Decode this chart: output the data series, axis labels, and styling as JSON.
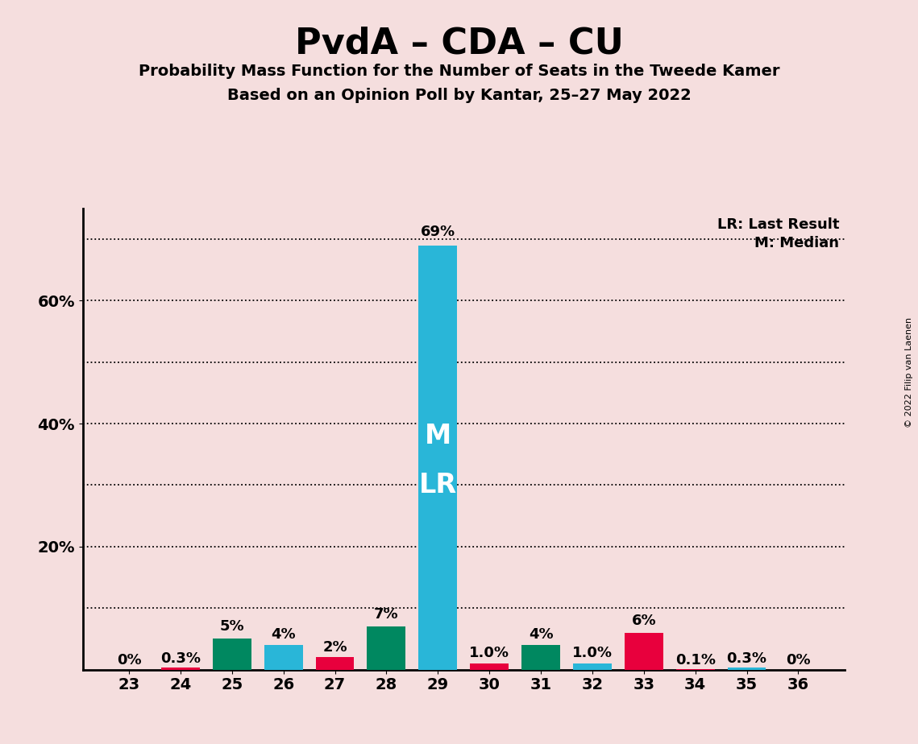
{
  "title": "PvdA – CDA – CU",
  "subtitle1": "Probability Mass Function for the Number of Seats in the Tweede Kamer",
  "subtitle2": "Based on an Opinion Poll by Kantar, 25–27 May 2022",
  "copyright": "© 2022 Filip van Laenen",
  "seats": [
    23,
    24,
    25,
    26,
    27,
    28,
    29,
    30,
    31,
    32,
    33,
    34,
    35,
    36
  ],
  "values": [
    0.0,
    0.3,
    5.0,
    4.0,
    2.0,
    7.0,
    69.0,
    1.0,
    4.0,
    1.0,
    6.0,
    0.1,
    0.3,
    0.0
  ],
  "bar_colors": [
    "#e8003d",
    "#e8003d",
    "#008860",
    "#29b6d8",
    "#e8003d",
    "#008860",
    "#29b6d8",
    "#e8003d",
    "#008860",
    "#29b6d8",
    "#e8003d",
    "#e8003d",
    "#29b6d8",
    "#e8003d"
  ],
  "labels": [
    "0%",
    "0.3%",
    "5%",
    "4%",
    "2%",
    "7%",
    "69%",
    "1.0%",
    "4%",
    "1.0%",
    "6%",
    "0.1%",
    "0.3%",
    "0%"
  ],
  "median_seat": 29,
  "last_result_seat": 29,
  "median_label": "M",
  "lr_label": "LR",
  "background_color": "#f5dede",
  "bar_color_teal": "#008860",
  "bar_color_blue": "#29b6d8",
  "bar_color_red": "#e8003d",
  "ylim": [
    0,
    75
  ],
  "grid_yticks": [
    10,
    20,
    30,
    40,
    50,
    60,
    70
  ],
  "ytick_display_positions": [
    20,
    40,
    60
  ],
  "ytick_display_labels": [
    "20%",
    "40%",
    "60%"
  ],
  "legend_lr": "LR: Last Result",
  "legend_m": "M: Median",
  "bar_width": 0.75
}
